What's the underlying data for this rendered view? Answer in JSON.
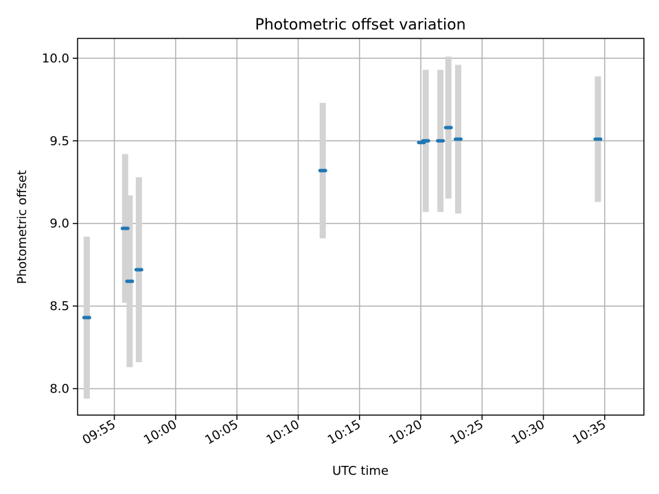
{
  "chart_data": {
    "type": "scatter",
    "title": "Photometric offset variation",
    "xlabel": "UTC time",
    "ylabel": "Photometric offset",
    "xlim_minutes": [
      -8,
      38.2
    ],
    "ylim": [
      7.84,
      10.12
    ],
    "x_ticks": [
      {
        "minutes": -5,
        "label": "09:55"
      },
      {
        "minutes": 0,
        "label": "10:00"
      },
      {
        "minutes": 5,
        "label": "10:05"
      },
      {
        "minutes": 10,
        "label": "10:10"
      },
      {
        "minutes": 15,
        "label": "10:15"
      },
      {
        "minutes": 20,
        "label": "10:20"
      },
      {
        "minutes": 25,
        "label": "10:25"
      },
      {
        "minutes": 30,
        "label": "10:30"
      },
      {
        "minutes": 35,
        "label": "10:35"
      }
    ],
    "y_ticks": [
      {
        "value": 8.0,
        "label": "8.0"
      },
      {
        "value": 8.5,
        "label": "8.5"
      },
      {
        "value": 9.0,
        "label": "9.0"
      },
      {
        "value": 9.5,
        "label": "9.5"
      },
      {
        "value": 10.0,
        "label": "10.0"
      }
    ],
    "grid": true,
    "marker_color": "#1f77b4",
    "errorbar_color": "#d3d3d3",
    "points": [
      {
        "minutes": -7.25,
        "value": 8.43,
        "error": 0.49
      },
      {
        "minutes": -4.12,
        "value": 8.97,
        "error": 0.45
      },
      {
        "minutes": -3.75,
        "value": 8.65,
        "error": 0.52
      },
      {
        "minutes": -3.0,
        "value": 8.72,
        "error": 0.56
      },
      {
        "minutes": 12.0,
        "value": 9.32,
        "error": 0.41
      },
      {
        "minutes": 20.05,
        "value": 9.49,
        "error": 0.0
      },
      {
        "minutes": 20.4,
        "value": 9.5,
        "error": 0.43
      },
      {
        "minutes": 21.6,
        "value": 9.5,
        "error": 0.43
      },
      {
        "minutes": 22.25,
        "value": 9.58,
        "error": 0.43
      },
      {
        "minutes": 23.05,
        "value": 9.51,
        "error": 0.45
      },
      {
        "minutes": 34.45,
        "value": 9.51,
        "error": 0.38
      }
    ]
  }
}
